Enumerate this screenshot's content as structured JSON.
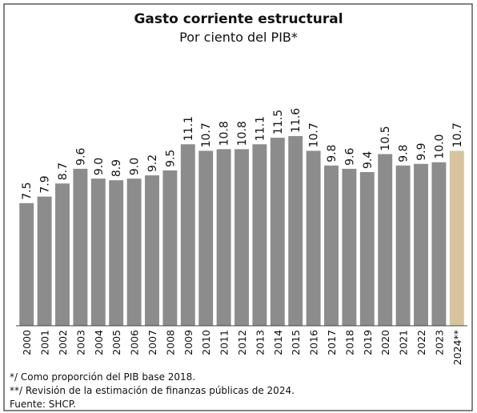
{
  "chart_data": {
    "type": "bar",
    "title": "Gasto corriente estructural",
    "subtitle": "Por ciento del PIB*",
    "categories": [
      "2000",
      "2001",
      "2002",
      "2003",
      "2004",
      "2005",
      "2006",
      "2007",
      "2008",
      "2009",
      "2010",
      "2011",
      "2012",
      "2013",
      "2014",
      "2015",
      "2016",
      "2017",
      "2018",
      "2019",
      "2020",
      "2021",
      "2022",
      "2023",
      "2024**"
    ],
    "values": [
      7.5,
      7.9,
      8.7,
      9.6,
      9.0,
      8.9,
      9.0,
      9.2,
      9.5,
      11.1,
      10.7,
      10.8,
      10.8,
      11.1,
      11.5,
      11.6,
      10.7,
      9.8,
      9.6,
      9.4,
      10.5,
      9.8,
      9.9,
      10.0,
      10.7
    ],
    "value_labels": [
      "7.5",
      "7.9",
      "8.7",
      "9.6",
      "9.0",
      "8.9",
      "9.0",
      "9.2",
      "9.5",
      "11.1",
      "10.7",
      "10.8",
      "10.8",
      "11.1",
      "11.5",
      "11.6",
      "10.7",
      "9.8",
      "9.6",
      "9.4",
      "10.5",
      "9.8",
      "9.9",
      "10.0",
      "10.7"
    ],
    "colors": [
      "#8c8c8c",
      "#8c8c8c",
      "#8c8c8c",
      "#8c8c8c",
      "#8c8c8c",
      "#8c8c8c",
      "#8c8c8c",
      "#8c8c8c",
      "#8c8c8c",
      "#8c8c8c",
      "#8c8c8c",
      "#8c8c8c",
      "#8c8c8c",
      "#8c8c8c",
      "#8c8c8c",
      "#8c8c8c",
      "#8c8c8c",
      "#8c8c8c",
      "#8c8c8c",
      "#8c8c8c",
      "#8c8c8c",
      "#8c8c8c",
      "#8c8c8c",
      "#8c8c8c",
      "#d6c49c"
    ],
    "ylim": [
      0,
      14
    ],
    "notes": [
      "*/ Como proporción del PIB base 2018.",
      "**/ Revisión de la estimación de finanzas públicas de 2024.",
      "Fuente: SHCP."
    ]
  }
}
